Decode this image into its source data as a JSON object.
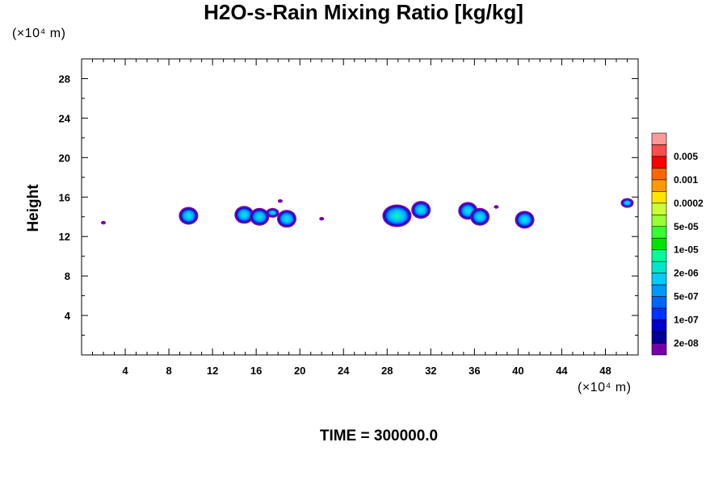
{
  "chart_data": {
    "type": "heatmap",
    "title": "H2O-s-Rain Mixing Ratio [kg/kg]",
    "ylabel": "Height",
    "xlabel": "",
    "x_unit": "(×10⁴ m)",
    "y_unit": "(×10⁴ m)",
    "xlim": [
      0,
      51
    ],
    "ylim": [
      0,
      30
    ],
    "x_ticks": [
      4,
      8,
      12,
      16,
      20,
      24,
      28,
      32,
      36,
      40,
      44,
      48
    ],
    "y_ticks": [
      4,
      8,
      12,
      16,
      20,
      24,
      28
    ],
    "colorbar": {
      "labels": [
        "0.005",
        "0.001",
        "0.0002",
        "5e-05",
        "1e-05",
        "2e-06",
        "5e-07",
        "1e-07",
        "2e-08"
      ],
      "colors": [
        "#ff9999",
        "#ff4d4d",
        "#ff0000",
        "#ff6600",
        "#ff9900",
        "#ffe600",
        "#ccff33",
        "#99ff33",
        "#33ff33",
        "#00e600",
        "#00ff99",
        "#00e6cc",
        "#00ccff",
        "#0099ff",
        "#0066ff",
        "#0033ff",
        "#0000cc",
        "#000099",
        "#7700aa"
      ]
    },
    "features": [
      {
        "x": 2.0,
        "y": 13.4,
        "peak": "2e-08"
      },
      {
        "x": 9.8,
        "y": 14.1,
        "peak": "5e-07"
      },
      {
        "x": 14.9,
        "y": 14.2,
        "peak": "5e-07"
      },
      {
        "x": 16.3,
        "y": 14.0,
        "peak": "5e-07"
      },
      {
        "x": 17.5,
        "y": 14.4,
        "peak": "1e-07"
      },
      {
        "x": 18.2,
        "y": 15.6,
        "peak": "2e-08"
      },
      {
        "x": 18.8,
        "y": 13.8,
        "peak": "5e-07"
      },
      {
        "x": 22.0,
        "y": 13.8,
        "peak": "2e-08"
      },
      {
        "x": 28.9,
        "y": 14.1,
        "peak": "2e-06"
      },
      {
        "x": 31.1,
        "y": 14.7,
        "peak": "5e-07"
      },
      {
        "x": 35.4,
        "y": 14.6,
        "peak": "5e-07"
      },
      {
        "x": 36.5,
        "y": 14.0,
        "peak": "5e-07"
      },
      {
        "x": 38.0,
        "y": 15.0,
        "peak": "2e-08"
      },
      {
        "x": 40.6,
        "y": 13.7,
        "peak": "5e-07"
      },
      {
        "x": 50.0,
        "y": 15.4,
        "peak": "1e-07"
      }
    ]
  },
  "time_label": "TIME = 300000.0"
}
